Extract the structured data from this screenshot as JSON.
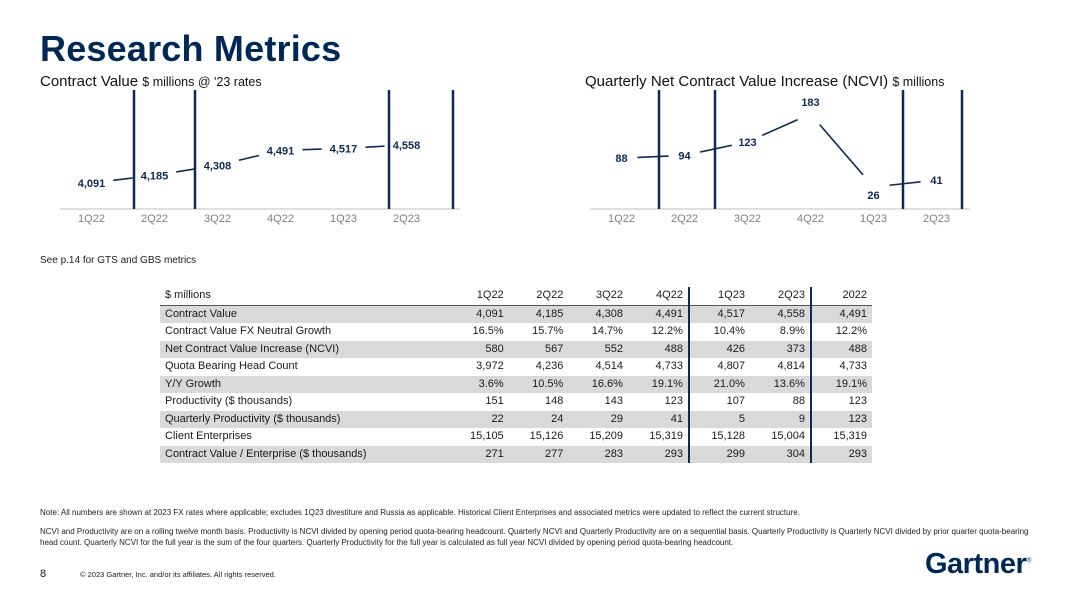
{
  "title": "Research Metrics",
  "chart_data": [
    {
      "type": "line",
      "title": "Contract Value",
      "unit": "$ millions @ '23 rates",
      "categories": [
        "1Q22",
        "2Q22",
        "3Q22",
        "4Q22",
        "1Q23",
        "2Q23"
      ],
      "values": [
        4091,
        4185,
        4308,
        4491,
        4517,
        4558
      ],
      "labels": [
        "4,091",
        "4,185",
        "4,308",
        "4,491",
        "4,517",
        "4,558"
      ],
      "color": "#0e2a52"
    },
    {
      "type": "line",
      "title": "Quarterly Net Contract Value Increase (NCVI)",
      "unit": "$ millions",
      "categories": [
        "1Q22",
        "2Q22",
        "3Q22",
        "4Q22",
        "1Q23",
        "2Q23"
      ],
      "values": [
        88,
        94,
        123,
        183,
        26,
        41
      ],
      "labels": [
        "88",
        "94",
        "123",
        "183",
        "26",
        "41"
      ],
      "color": "#0e2a52"
    }
  ],
  "see_note": "See p.14 for GTS and GBS metrics",
  "table": {
    "header": [
      "$ millions",
      "1Q22",
      "2Q22",
      "3Q22",
      "4Q22",
      "1Q23",
      "2Q23",
      "2022"
    ],
    "rows": [
      [
        "Contract Value",
        "4,091",
        "4,185",
        "4,308",
        "4,491",
        "4,517",
        "4,558",
        "4,491"
      ],
      [
        "Contract Value FX Neutral Growth",
        "16.5%",
        "15.7%",
        "14.7%",
        "12.2%",
        "10.4%",
        "8.9%",
        "12.2%"
      ],
      [
        "Net Contract Value Increase (NCVI)",
        "580",
        "567",
        "552",
        "488",
        "426",
        "373",
        "488"
      ],
      [
        "Quota Bearing Head Count",
        "3,972",
        "4,236",
        "4,514",
        "4,733",
        "4,807",
        "4,814",
        "4,733"
      ],
      [
        "Y/Y Growth",
        "3.6%",
        "10.5%",
        "16.6%",
        "19.1%",
        "21.0%",
        "13.6%",
        "19.1%"
      ],
      [
        "Productivity ($ thousands)",
        "151",
        "148",
        "143",
        "123",
        "107",
        "88",
        "123"
      ],
      [
        "Quarterly Productivity ($ thousands)",
        "22",
        "24",
        "29",
        "41",
        "5",
        "9",
        "123"
      ],
      [
        "Client Enterprises",
        "15,105",
        "15,126",
        "15,209",
        "15,319",
        "15,128",
        "15,004",
        "15,319"
      ],
      [
        "Contract Value / Enterprise ($ thousands)",
        "271",
        "277",
        "283",
        "293",
        "299",
        "304",
        "293"
      ]
    ]
  },
  "notes": [
    "Note: All numbers are shown at 2023 FX rates where applicable; excludes 1Q23 divestiture and Russia as applicable. Historical Client Enterprises and associated metrics were updated to reflect the current structure.",
    "NCVI and Productivity are on a rolling twelve month basis. Productivity is NCVI divided by opening period quota-bearing headcount. Quarterly NCVI and Quarterly Productivity are on a sequential basis. Quarterly Productivity is Quarterly NCVI divided by prior quarter quota-bearing head count. Quarterly NCVI for the full year is the sum of the four quarters. Quarterly Productivity for the full year is calculated as full year NCVI divided by opening period quota-bearing headcount."
  ],
  "page_number": "8",
  "copyright": "© 2023 Gartner, Inc. and/or its affiliates. All rights reserved.",
  "logo": {
    "text": "Gartner",
    "mark": "®"
  }
}
